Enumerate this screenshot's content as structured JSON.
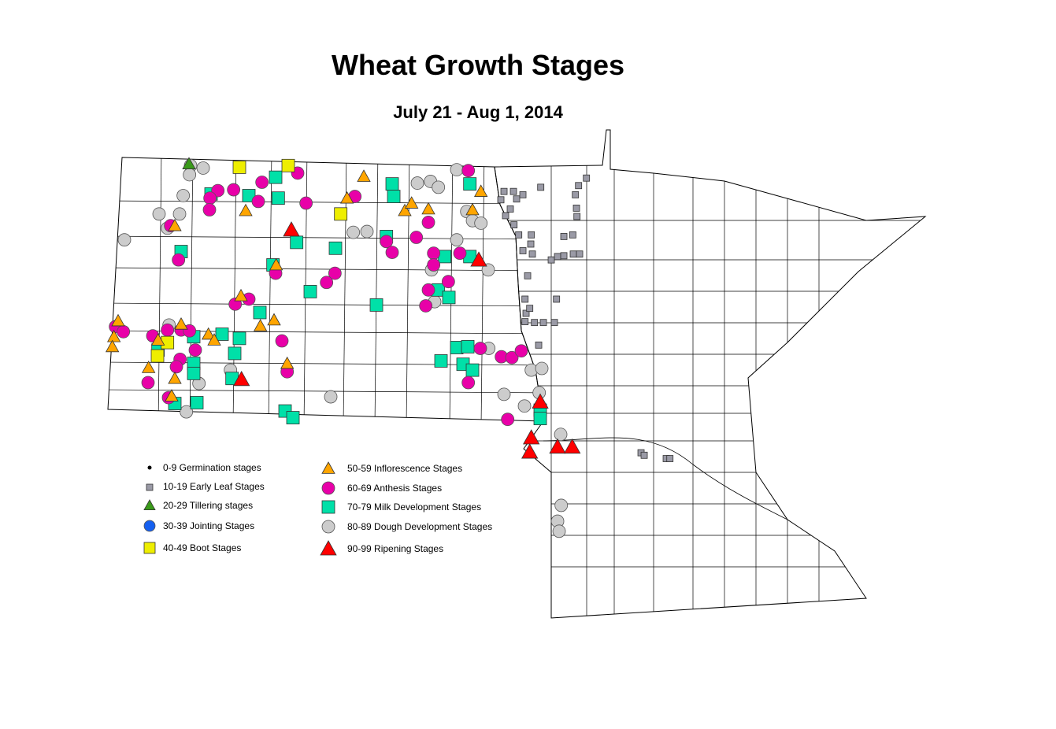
{
  "title": "Wheat Growth Stages",
  "subtitle": "July 21 - Aug 1, 2014",
  "legend": [
    {
      "code": "G",
      "label": "0-9 Germination stages",
      "shape": "dot",
      "color": "#000000"
    },
    {
      "code": "L",
      "label": "10-19 Early Leaf Stages",
      "shape": "small-square",
      "color": "#9a9aa6"
    },
    {
      "code": "T",
      "label": "20-29 Tillering stages",
      "shape": "triangle",
      "color": "#3a9a1a"
    },
    {
      "code": "J",
      "label": "30-39 Jointing Stages",
      "shape": "circle",
      "color": "#1560f0"
    },
    {
      "code": "B",
      "label": "40-49 Boot Stages",
      "shape": "square",
      "color": "#eeee00"
    },
    {
      "code": "I",
      "label": "50-59 Inflorescence Stages",
      "shape": "triangle",
      "color": "#ffa500"
    },
    {
      "code": "A",
      "label": "60-69 Anthesis Stages",
      "shape": "circle",
      "color": "#e800a8"
    },
    {
      "code": "M",
      "label": "70-79 Milk Development Stages",
      "shape": "square",
      "color": "#00e0a8"
    },
    {
      "code": "D",
      "label": "80-89 Dough Development Stages",
      "shape": "circle",
      "color": "#cccccc"
    },
    {
      "code": "R",
      "label": "90-99 Ripening Stages",
      "shape": "triangle",
      "color": "#ff0000"
    }
  ],
  "observations": {
    "D": [
      [
        -102.67,
        48.95
      ],
      [
        -102.43,
        48.92
      ],
      [
        -102.69,
        48.84
      ],
      [
        -102.81,
        48.59
      ],
      [
        -103.27,
        48.37
      ],
      [
        -102.88,
        48.37
      ],
      [
        -103.93,
        48.06
      ],
      [
        -103.11,
        48.2
      ],
      [
        -98.35,
        48.74
      ],
      [
        -98.1,
        48.76
      ],
      [
        -97.95,
        48.69
      ],
      [
        -97.6,
        48.9
      ],
      [
        -99.57,
        48.15
      ],
      [
        -99.31,
        48.16
      ],
      [
        -97.6,
        48.06
      ],
      [
        -97.41,
        48.4
      ],
      [
        -97.3,
        48.29
      ],
      [
        -97.14,
        48.26
      ],
      [
        -97.0,
        47.7
      ],
      [
        -98.08,
        47.7
      ],
      [
        -98.02,
        47.32
      ],
      [
        -103.08,
        47.04
      ],
      [
        -101.91,
        46.5
      ],
      [
        -102.51,
        46.34
      ],
      [
        -102.75,
        46.0
      ],
      [
        -100.0,
        46.18
      ],
      [
        -96.99,
        46.76
      ],
      [
        -96.7,
        46.21
      ],
      [
        -96.31,
        46.07
      ],
      [
        -96.03,
        46.23
      ],
      [
        -96.18,
        46.5
      ],
      [
        -95.98,
        46.52
      ],
      [
        -95.62,
        45.73
      ],
      [
        -95.61,
        44.88
      ],
      [
        -95.68,
        44.69
      ],
      [
        -95.65,
        44.57
      ]
    ],
    "A": [
      [
        -100.63,
        48.86
      ],
      [
        -97.38,
        48.89
      ],
      [
        -101.31,
        48.75
      ],
      [
        -101.85,
        48.66
      ],
      [
        -102.15,
        48.65
      ],
      [
        -102.3,
        48.56
      ],
      [
        -102.31,
        48.42
      ],
      [
        -101.38,
        48.52
      ],
      [
        -100.47,
        48.5
      ],
      [
        -99.54,
        48.58
      ],
      [
        -103.05,
        48.23
      ],
      [
        -102.9,
        47.82
      ],
      [
        -98.14,
        48.27
      ],
      [
        -98.94,
        48.04
      ],
      [
        -98.83,
        47.91
      ],
      [
        -98.37,
        48.09
      ],
      [
        -98.04,
        47.9
      ],
      [
        -98.04,
        47.76
      ],
      [
        -97.54,
        47.9
      ],
      [
        -99.92,
        47.66
      ],
      [
        -100.08,
        47.55
      ],
      [
        -101.05,
        47.66
      ],
      [
        -101.56,
        47.35
      ],
      [
        -101.82,
        47.29
      ],
      [
        -98.14,
        47.46
      ],
      [
        -98.19,
        47.27
      ],
      [
        -97.76,
        47.56
      ],
      [
        -104.1,
        47.02
      ],
      [
        -103.95,
        46.96
      ],
      [
        -103.39,
        46.91
      ],
      [
        -103.11,
        46.98
      ],
      [
        -102.85,
        46.98
      ],
      [
        -102.69,
        46.97
      ],
      [
        -102.58,
        46.74
      ],
      [
        -102.87,
        46.63
      ],
      [
        -102.94,
        46.54
      ],
      [
        -103.48,
        46.35
      ],
      [
        -103.09,
        46.17
      ],
      [
        -100.93,
        46.85
      ],
      [
        -100.83,
        46.48
      ],
      [
        -97.15,
        46.76
      ],
      [
        -96.75,
        46.66
      ],
      [
        -96.55,
        46.65
      ],
      [
        -96.37,
        46.73
      ],
      [
        -97.38,
        46.35
      ],
      [
        -96.63,
        45.91
      ]
    ],
    "M": [
      [
        -101.05,
        48.81
      ],
      [
        -101.56,
        48.59
      ],
      [
        -101.0,
        48.56
      ],
      [
        -102.28,
        48.61
      ],
      [
        -98.83,
        48.73
      ],
      [
        -98.8,
        48.58
      ],
      [
        -97.35,
        48.73
      ],
      [
        -98.94,
        48.1
      ],
      [
        -100.65,
        48.03
      ],
      [
        -99.91,
        47.96
      ],
      [
        -102.85,
        47.92
      ],
      [
        -97.83,
        47.86
      ],
      [
        -97.35,
        47.86
      ],
      [
        -101.1,
        47.76
      ],
      [
        -100.39,
        47.44
      ],
      [
        -99.13,
        47.28
      ],
      [
        -97.95,
        47.46
      ],
      [
        -97.75,
        47.37
      ],
      [
        -101.35,
        47.19
      ],
      [
        -102.07,
        46.93
      ],
      [
        -101.74,
        46.88
      ],
      [
        -102.61,
        46.9
      ],
      [
        -103.29,
        46.74
      ],
      [
        -102.61,
        46.58
      ],
      [
        -102.61,
        46.46
      ],
      [
        -101.83,
        46.7
      ],
      [
        -101.88,
        46.4
      ],
      [
        -102.97,
        46.1
      ],
      [
        -102.55,
        46.11
      ],
      [
        -100.87,
        46.01
      ],
      [
        -100.72,
        45.93
      ],
      [
        -97.6,
        46.77
      ],
      [
        -97.39,
        46.78
      ],
      [
        -97.9,
        46.61
      ],
      [
        -97.48,
        46.57
      ],
      [
        -97.3,
        46.5
      ],
      [
        -96.01,
        46.02
      ],
      [
        -96.01,
        45.92
      ]
    ],
    "I": [
      [
        -99.37,
        48.82
      ],
      [
        -99.69,
        48.56
      ],
      [
        -101.62,
        48.41
      ],
      [
        -98.59,
        48.41
      ],
      [
        -98.46,
        48.5
      ],
      [
        -98.14,
        48.43
      ],
      [
        -97.14,
        48.64
      ],
      [
        -102.97,
        48.23
      ],
      [
        -101.04,
        47.76
      ],
      [
        -101.71,
        47.39
      ],
      [
        -101.08,
        47.1
      ],
      [
        -101.34,
        47.03
      ],
      [
        -104.05,
        47.09
      ],
      [
        -104.13,
        46.9
      ],
      [
        -104.16,
        46.78
      ],
      [
        -102.85,
        47.05
      ],
      [
        -102.33,
        46.93
      ],
      [
        -102.22,
        46.86
      ],
      [
        -103.29,
        46.86
      ],
      [
        -103.47,
        46.53
      ],
      [
        -102.97,
        46.4
      ],
      [
        -103.03,
        46.19
      ],
      [
        -100.83,
        46.58
      ],
      [
        -97.3,
        48.42
      ]
    ],
    "B": [
      [
        -101.74,
        48.93
      ],
      [
        -100.81,
        48.95
      ],
      [
        -99.81,
        48.37
      ],
      [
        -103.11,
        46.83
      ],
      [
        -103.3,
        46.67
      ]
    ],
    "T": [
      [
        -102.7,
        48.97
      ]
    ],
    "R": [
      [
        -100.75,
        48.18
      ],
      [
        -97.18,
        47.82
      ],
      [
        -101.7,
        46.39
      ],
      [
        -96.18,
        45.69
      ],
      [
        -96.21,
        45.52
      ],
      [
        -95.68,
        45.58
      ],
      [
        -95.4,
        45.58
      ],
      [
        -96.01,
        46.12
      ]
    ],
    "L": [
      [
        -96.76,
        48.54
      ],
      [
        -96.7,
        48.64
      ],
      [
        -96.52,
        48.64
      ],
      [
        -96.46,
        48.55
      ],
      [
        -96.58,
        48.43
      ],
      [
        -96.67,
        48.35
      ],
      [
        -96.34,
        48.6
      ],
      [
        -96.0,
        48.69
      ],
      [
        -95.13,
        48.8
      ],
      [
        -95.28,
        48.71
      ],
      [
        -95.34,
        48.6
      ],
      [
        -95.32,
        48.44
      ],
      [
        -95.31,
        48.34
      ],
      [
        -96.51,
        48.24
      ],
      [
        -96.42,
        48.12
      ],
      [
        -96.34,
        47.93
      ],
      [
        -96.18,
        48.12
      ],
      [
        -96.19,
        48.01
      ],
      [
        -96.16,
        47.89
      ],
      [
        -95.8,
        47.82
      ],
      [
        -95.68,
        47.86
      ],
      [
        -95.56,
        47.87
      ],
      [
        -95.38,
        47.89
      ],
      [
        -95.26,
        47.89
      ],
      [
        -95.56,
        48.1
      ],
      [
        -95.39,
        48.12
      ],
      [
        -96.25,
        47.63
      ],
      [
        -96.3,
        47.35
      ],
      [
        -96.28,
        47.18
      ],
      [
        -96.21,
        47.24
      ],
      [
        -96.12,
        47.07
      ],
      [
        -95.95,
        47.07
      ],
      [
        -95.74,
        47.07
      ],
      [
        -95.7,
        47.35
      ],
      [
        -96.3,
        47.08
      ],
      [
        -96.04,
        46.8
      ],
      [
        -94.09,
        45.51
      ],
      [
        -94.03,
        45.48
      ],
      [
        -93.61,
        45.44
      ],
      [
        -93.54,
        45.44
      ]
    ]
  }
}
